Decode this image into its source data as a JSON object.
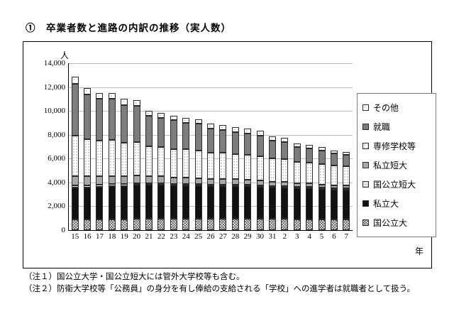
{
  "page": {
    "title": "①　卒業者数と進路の内訳の推移（実人数）",
    "notes": [
      "（注１）国公立大学・国公立短大には管外大学校等も含む。",
      "（注２）防衛大学校等「公務員」の身分を有し俸給の支給される「学校」への進学者は就職者として扱う。"
    ]
  },
  "chart_data": {
    "type": "bar",
    "stacked": true,
    "unit_label": "人",
    "xlabel": "年",
    "ylim": [
      0,
      14000
    ],
    "ytick_interval": 2000,
    "yticks": [
      "0",
      "2,000",
      "4,000",
      "6,000",
      "8,000",
      "10,000",
      "12,000",
      "14,000"
    ],
    "grid": true,
    "categories": [
      "15",
      "16",
      "17",
      "18",
      "19",
      "20",
      "21",
      "22",
      "23",
      "24",
      "25",
      "26",
      "27",
      "28",
      "29",
      "30",
      "31",
      "2",
      "3",
      "4",
      "5",
      "6",
      "7"
    ],
    "series": [
      {
        "name": "国公立大",
        "pattern": "crosshatch",
        "values": [
          900,
          900,
          900,
          900,
          900,
          950,
          950,
          950,
          950,
          950,
          950,
          950,
          950,
          950,
          950,
          950,
          950,
          950,
          900,
          900,
          900,
          900,
          900
        ]
      },
      {
        "name": "私立大",
        "pattern": "solid-black",
        "color": "#121212",
        "values": [
          2700,
          2700,
          2750,
          2800,
          2800,
          2850,
          2850,
          2850,
          2800,
          2800,
          2800,
          2750,
          2750,
          2750,
          2750,
          2700,
          2650,
          2650,
          2600,
          2600,
          2550,
          2500,
          2500
        ]
      },
      {
        "name": "国公立短大",
        "pattern": "fine-dots",
        "values": [
          150,
          150,
          150,
          150,
          150,
          150,
          100,
          100,
          100,
          100,
          100,
          100,
          100,
          100,
          100,
          100,
          50,
          50,
          50,
          50,
          50,
          50,
          50
        ]
      },
      {
        "name": "私立短大",
        "pattern": "solid-gray",
        "color": "#a8a8a8",
        "values": [
          800,
          750,
          700,
          700,
          650,
          650,
          600,
          600,
          550,
          550,
          500,
          500,
          450,
          450,
          400,
          400,
          350,
          350,
          300,
          300,
          250,
          250,
          250
        ]
      },
      {
        "name": "専修学校等",
        "pattern": "dots",
        "values": [
          3350,
          3100,
          3000,
          3000,
          2850,
          2800,
          2500,
          2450,
          2400,
          2350,
          2300,
          2200,
          2200,
          2100,
          2100,
          2050,
          1950,
          1900,
          1800,
          1750,
          1700,
          1650,
          1600
        ]
      },
      {
        "name": "就職",
        "pattern": "solid-darkgray",
        "color": "#7d7d7d",
        "values": [
          4400,
          3800,
          3500,
          3450,
          3150,
          3000,
          2600,
          2450,
          2400,
          2250,
          2250,
          2000,
          1950,
          1850,
          1800,
          1700,
          1500,
          1450,
          1250,
          1200,
          1150,
          1000,
          950
        ]
      },
      {
        "name": "その他",
        "pattern": "sparse-dots",
        "values": [
          600,
          500,
          500,
          500,
          500,
          500,
          400,
          400,
          400,
          400,
          400,
          400,
          400,
          400,
          400,
          400,
          350,
          350,
          300,
          300,
          300,
          250,
          250
        ]
      }
    ],
    "totals": [
      12900,
      11900,
      11500,
      11500,
      11000,
      10900,
      10000,
      9800,
      9600,
      9400,
      9300,
      8900,
      8800,
      8600,
      8500,
      8300,
      7800,
      7700,
      7200,
      7100,
      6900,
      6600,
      6500
    ],
    "legend": {
      "position": "right",
      "order_top_to_bottom": [
        "その他",
        "就職",
        "専修学校等",
        "私立短大",
        "国公立短大",
        "私立大",
        "国公立大"
      ]
    }
  }
}
